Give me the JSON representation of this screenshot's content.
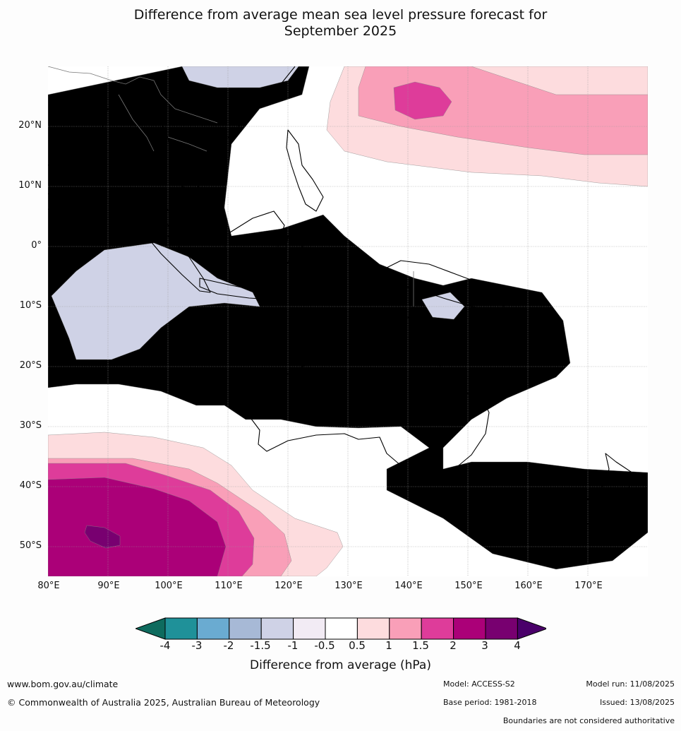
{
  "title_line1": "Difference from average mean sea level pressure forecast for",
  "title_line2": "September 2025",
  "lat_labels": [
    "20°N",
    "10°N",
    "0°",
    "10°S",
    "20°S",
    "30°S",
    "40°S",
    "50°S"
  ],
  "lon_labels": [
    "80°E",
    "90°E",
    "100°E",
    "110°E",
    "120°E",
    "130°E",
    "140°E",
    "150°E",
    "160°E",
    "170°E"
  ],
  "colorbar": {
    "ticks": [
      "-4",
      "-3",
      "-2",
      "-1.5",
      "-1",
      "-0.5",
      "0.5",
      "1",
      "1.5",
      "2",
      "3",
      "4"
    ],
    "colors": [
      "#0e6b5e",
      "#1f9199",
      "#6aabd1",
      "#a7b9d6",
      "#cfd2e6",
      "#f2ebf4",
      "#ffffff",
      "#fddcde",
      "#f99fb8",
      "#de3c9a",
      "#ab0078",
      "#780070",
      "#4a006a"
    ],
    "label": "Difference from average (hPa)"
  },
  "footer": {
    "url": "www.bom.gov.au/climate",
    "copyright": "© Commonwealth of Australia 2025, Australian Bureau of Meteorology",
    "model": "Model: ACCESS-S2",
    "base_period": "Base period: 1981-2018",
    "model_run": "Model run: 11/08/2025",
    "issued": "Issued: 13/08/2025",
    "disclaimer": "Boundaries are not considered authoritative"
  }
}
